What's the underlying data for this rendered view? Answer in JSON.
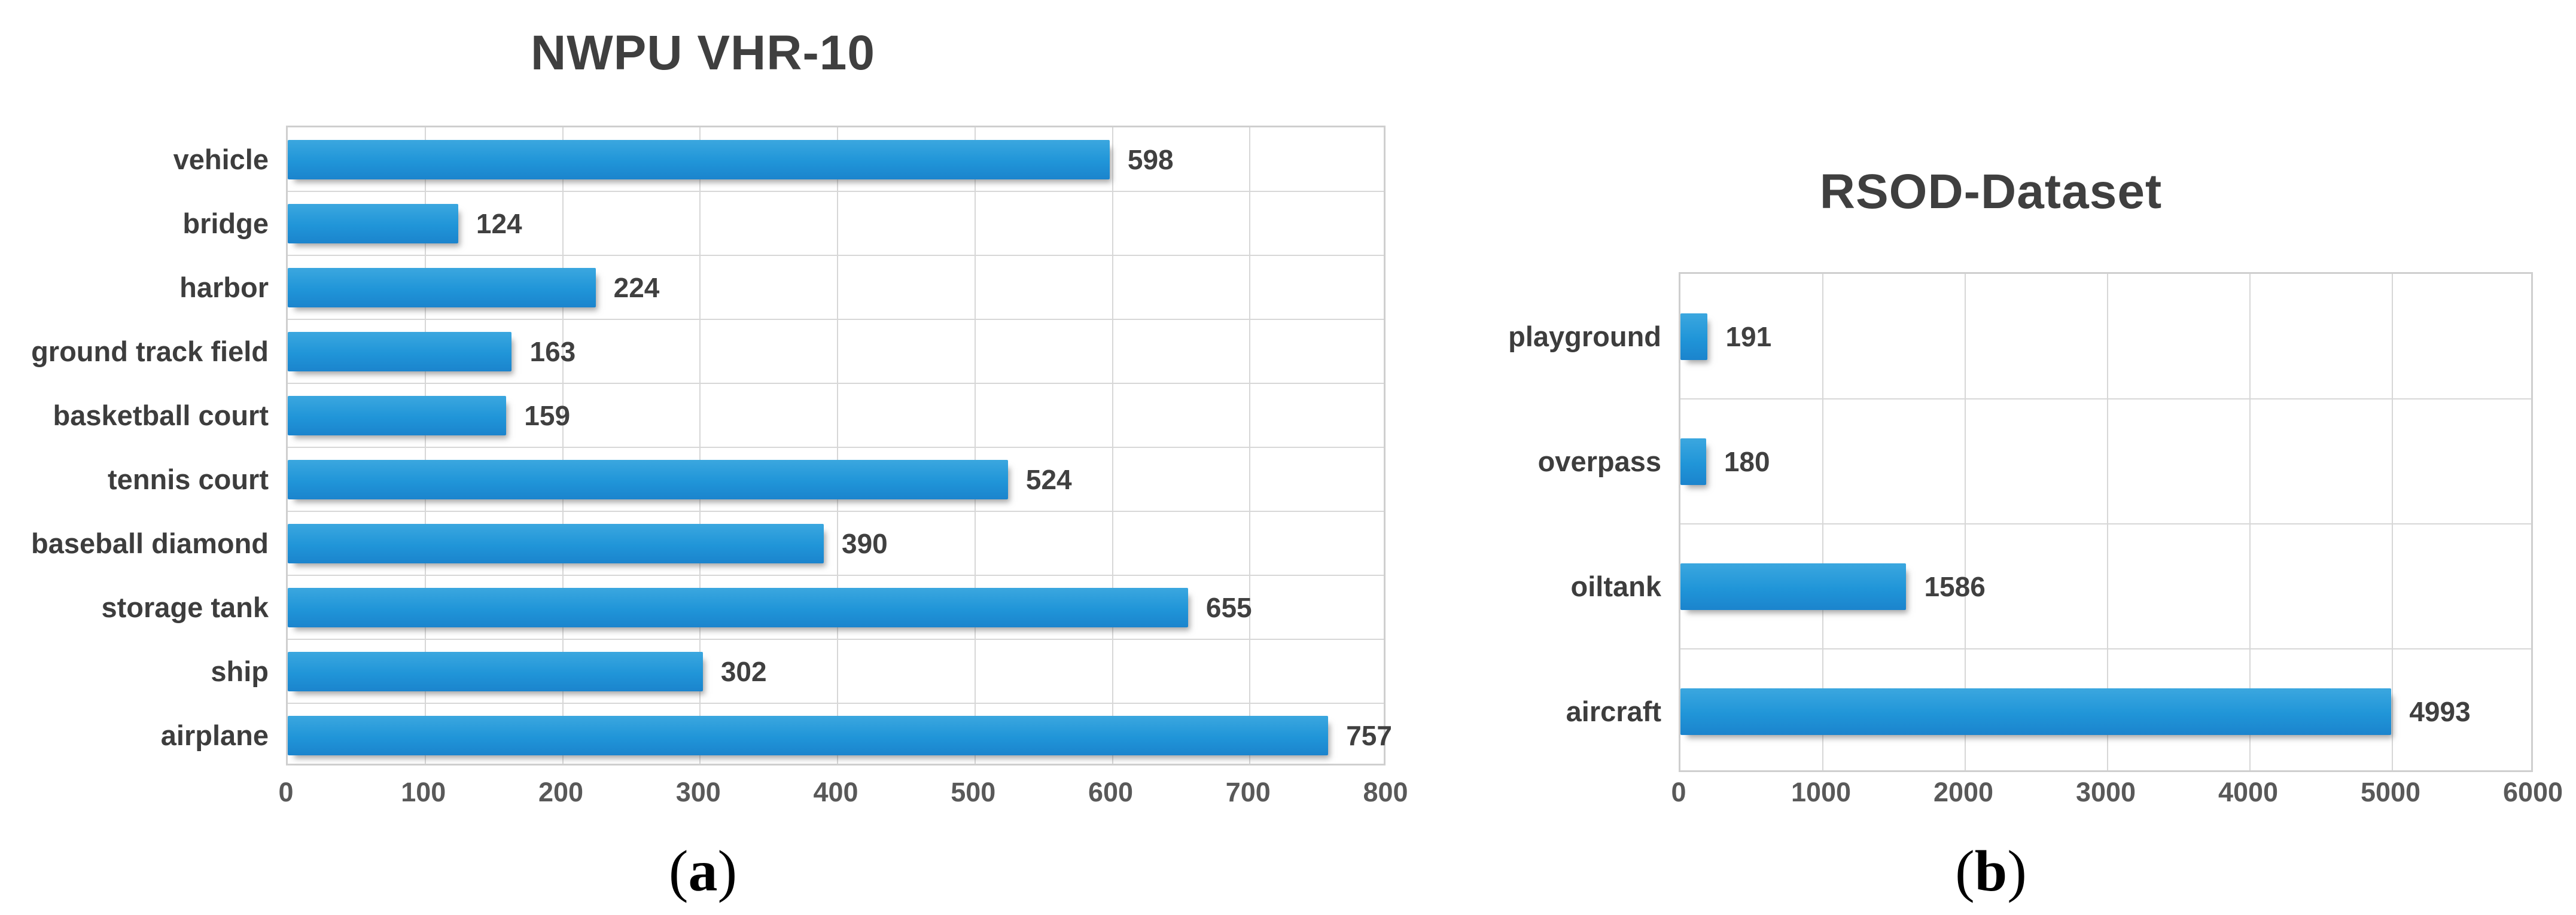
{
  "figure": {
    "captions": [
      {
        "open": "(",
        "letter": "a",
        "close": ")"
      },
      {
        "open": "(",
        "letter": "b",
        "close": ")"
      }
    ]
  },
  "colors": {
    "bar": "#2095d8",
    "bar_gradient_top": "#3ba7df",
    "bar_gradient_bottom": "#1b84cd",
    "gridline": "#d7d7d7",
    "plot_border": "#cfcfcf",
    "title_text": "#3f3f3f",
    "category_text": "#3d3d3d",
    "value_text": "#404040",
    "tick_text": "#595959",
    "background": "#ffffff"
  },
  "chart_data": [
    {
      "type": "bar",
      "orientation": "horizontal",
      "title": "NWPU VHR-10",
      "categories": [
        "vehicle",
        "bridge",
        "harbor",
        "ground track field",
        "basketball court",
        "tennis court",
        "baseball diamond",
        "storage tank",
        "ship",
        "airplane"
      ],
      "values": [
        598,
        124,
        224,
        163,
        159,
        524,
        390,
        655,
        302,
        757
      ],
      "data_labels": [
        "598",
        "124",
        "224",
        "163",
        "159",
        "524",
        "390",
        "655",
        "302",
        "757"
      ],
      "xlim": [
        0,
        800
      ],
      "xticks": [
        "0",
        "100",
        "200",
        "300",
        "400",
        "500",
        "600",
        "700",
        "800"
      ],
      "grid": true,
      "legend": "none",
      "xlabel": "",
      "ylabel": ""
    },
    {
      "type": "bar",
      "orientation": "horizontal",
      "title": "RSOD-Dataset",
      "categories": [
        "playground",
        "overpass",
        "oiltank",
        "aircraft"
      ],
      "values": [
        191,
        180,
        1586,
        4993
      ],
      "data_labels": [
        "191",
        "180",
        "1586",
        "4993"
      ],
      "xlim": [
        0,
        6000
      ],
      "xticks": [
        "0",
        "1000",
        "2000",
        "3000",
        "4000",
        "5000",
        "6000"
      ],
      "grid": true,
      "legend": "none",
      "xlabel": "",
      "ylabel": ""
    }
  ]
}
